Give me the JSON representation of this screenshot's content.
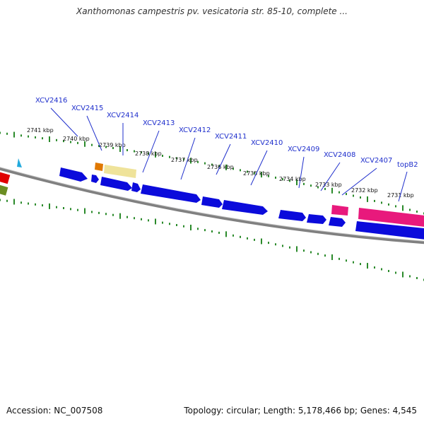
{
  "header": {
    "title": "Xanthomonas campestris pv. vesicatoria str. 85-10, complete ..."
  },
  "footer": {
    "accession": "Accession: NC_007508",
    "summary": "Topology: circular; Length: 5,178,466 bp; Genes: 4,545"
  },
  "colors": {
    "tick": "#2a8a2a",
    "backbone": "#808080",
    "cds": "#0b0bdb",
    "rna": "#e8197c",
    "label": "#1f2fcc",
    "marker": "#22aadd"
  },
  "kbp_ticks": [
    {
      "text": "2741 kbp"
    },
    {
      "text": "2740 kbp"
    },
    {
      "text": "2739 kbp"
    },
    {
      "text": "2738 kbp"
    },
    {
      "text": "2737 kbp"
    },
    {
      "text": "2736 kbp"
    },
    {
      "text": "2735 kbp"
    },
    {
      "text": "2734 kbp"
    },
    {
      "text": "2733 kbp"
    },
    {
      "text": "2732 kbp"
    },
    {
      "text": "2731 kbp"
    }
  ],
  "genes": [
    {
      "name": "XCV2416"
    },
    {
      "name": "XCV2415"
    },
    {
      "name": "XCV2414"
    },
    {
      "name": "XCV2413"
    },
    {
      "name": "XCV2412"
    },
    {
      "name": "XCV2411"
    },
    {
      "name": "XCV2410"
    },
    {
      "name": "XCV2409"
    },
    {
      "name": "XCV2408"
    },
    {
      "name": "XCV2407"
    },
    {
      "name": "topB2"
    }
  ]
}
